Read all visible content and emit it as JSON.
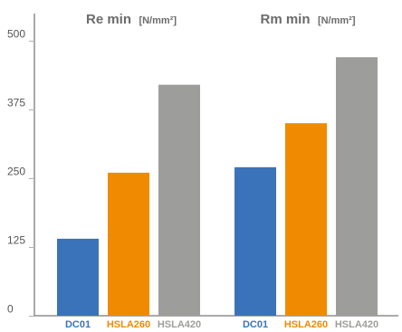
{
  "chart_data": {
    "type": "bar",
    "groups": [
      {
        "title": "Re min",
        "unit": "[N/mm²]"
      },
      {
        "title": "Rm min",
        "unit": "[N/mm²]"
      }
    ],
    "categories": [
      "DC01",
      "HSLA260",
      "HSLA420"
    ],
    "series": [
      {
        "values": [
          140,
          260,
          420
        ]
      },
      {
        "values": [
          270,
          350,
          470
        ]
      }
    ],
    "yticks": [
      0,
      125,
      250,
      375,
      500
    ],
    "ylim": [
      0,
      500
    ],
    "grid": false,
    "legend": "none"
  },
  "colors": {
    "DC01": "#3a73b9",
    "HSLA260": "#f08a00",
    "HSLA420": "#9d9d9b",
    "axis": "#555555",
    "tick": "#b0b0b0"
  }
}
